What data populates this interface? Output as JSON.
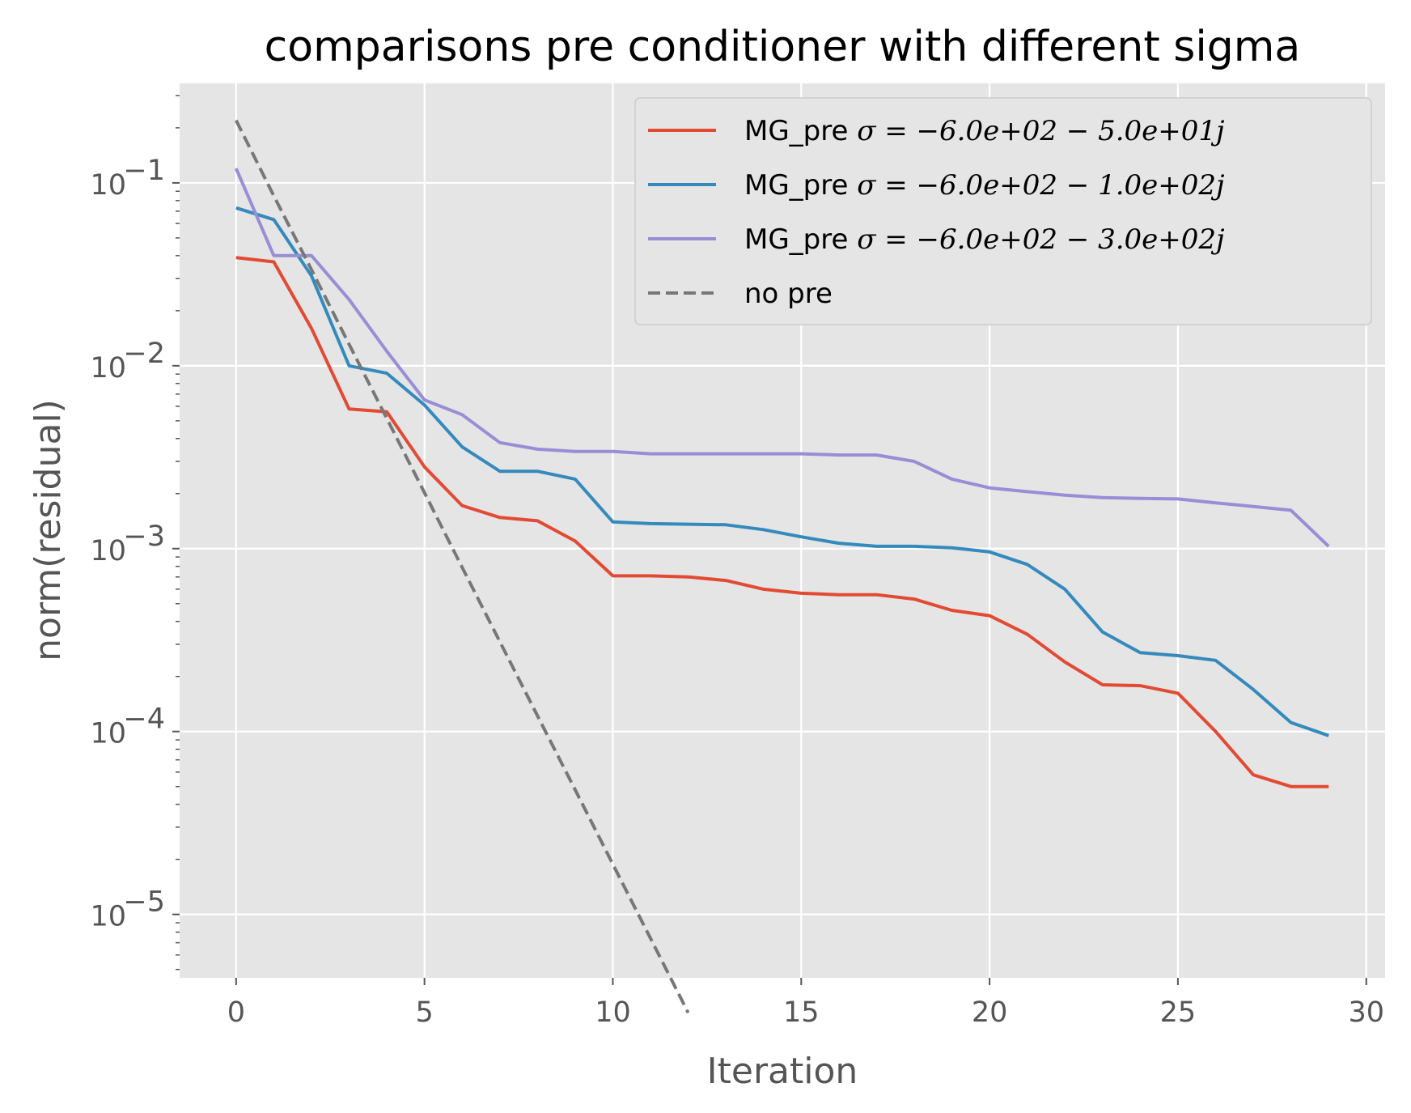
{
  "chart_data": {
    "type": "line",
    "title": "comparisons pre conditioner with different sigma",
    "xlabel": "Iteration",
    "ylabel": "norm(residual)",
    "yscale": "log",
    "xlim": [
      -1.5,
      30.5
    ],
    "ylim": [
      4.5e-06,
      0.35
    ],
    "xticks": [
      0,
      5,
      10,
      15,
      20,
      25,
      30
    ],
    "xtick_labels": [
      "0",
      "5",
      "10",
      "15",
      "20",
      "25",
      "30"
    ],
    "yticks": [
      1e-05,
      0.0001,
      0.001,
      0.01,
      0.1
    ],
    "ytick_labels": [
      "10−5",
      "10−4",
      "10−3",
      "10−2",
      "10−1"
    ],
    "grid": true,
    "legend_position": "top-right",
    "background": "#e5e5e5",
    "series": [
      {
        "name": "MG_pre σ = −6.0e+02 − 5.0e+01j",
        "color": "#e24a33",
        "style": "solid",
        "x": [
          0,
          1,
          2,
          3,
          4,
          5,
          6,
          7,
          8,
          9,
          10,
          11,
          12,
          13,
          14,
          15,
          16,
          17,
          18,
          19,
          20,
          21,
          22,
          23,
          24,
          25,
          26,
          27,
          28,
          29
        ],
        "values": [
          0.039,
          0.037,
          0.016,
          0.0058,
          0.0056,
          0.0028,
          0.00172,
          0.00148,
          0.00142,
          0.0011,
          0.00071,
          0.00071,
          0.0007,
          0.00067,
          0.0006,
          0.00057,
          0.00056,
          0.00056,
          0.00053,
          0.00046,
          0.00043,
          0.00034,
          0.00024,
          0.00018,
          0.000178,
          0.000162,
          0.0001,
          5.8e-05,
          5e-05,
          5e-05
        ]
      },
      {
        "name": "MG_pre σ = −6.0e+02 − 1.0e+02j",
        "color": "#348abd",
        "style": "solid",
        "x": [
          0,
          1,
          2,
          3,
          4,
          5,
          6,
          7,
          8,
          9,
          10,
          11,
          12,
          13,
          14,
          15,
          16,
          17,
          18,
          19,
          20,
          21,
          22,
          23,
          24,
          25,
          26,
          27,
          28,
          29
        ],
        "values": [
          0.073,
          0.063,
          0.031,
          0.01,
          0.0091,
          0.0061,
          0.0036,
          0.00265,
          0.00265,
          0.0024,
          0.0014,
          0.00137,
          0.00136,
          0.00135,
          0.00127,
          0.00116,
          0.00107,
          0.00103,
          0.00103,
          0.00101,
          0.00096,
          0.00082,
          0.0006,
          0.00035,
          0.00027,
          0.00026,
          0.000245,
          0.00017,
          0.000112,
          9.5e-05
        ]
      },
      {
        "name": "MG_pre σ = −6.0e+02 − 3.0e+02j",
        "color": "#988ed5",
        "style": "solid",
        "x": [
          0,
          1,
          2,
          3,
          4,
          5,
          6,
          7,
          8,
          9,
          10,
          11,
          12,
          13,
          14,
          15,
          16,
          17,
          18,
          19,
          20,
          21,
          22,
          23,
          24,
          25,
          26,
          27,
          28,
          29
        ],
        "values": [
          0.12,
          0.04,
          0.04,
          0.023,
          0.012,
          0.0065,
          0.0054,
          0.0038,
          0.0035,
          0.0034,
          0.0034,
          0.0033,
          0.0033,
          0.0033,
          0.0033,
          0.0033,
          0.00325,
          0.00325,
          0.003,
          0.0024,
          0.00215,
          0.00205,
          0.00196,
          0.0019,
          0.00188,
          0.00187,
          0.00178,
          0.0017,
          0.00162,
          0.00103
        ]
      },
      {
        "name": "no pre",
        "color": "#777777",
        "style": "dashed",
        "x": [
          0,
          1,
          2,
          3,
          4,
          5,
          6,
          7,
          8,
          9,
          10,
          11,
          12
        ],
        "values": [
          0.22,
          0.085,
          0.0335,
          0.0131,
          0.00515,
          0.00202,
          0.00079,
          0.00031,
          0.000122,
          4.8e-05,
          1.88e-05,
          7.4e-06,
          2.9e-06
        ]
      }
    ],
    "legend": [
      {
        "label_prefix": "MG_pre ",
        "label_math": "σ = −6.0e+02 − 5.0e+01j"
      },
      {
        "label_prefix": "MG_pre ",
        "label_math": "σ = −6.0e+02 − 1.0e+02j"
      },
      {
        "label_prefix": "MG_pre ",
        "label_math": "σ = −6.0e+02 − 3.0e+02j"
      },
      {
        "label_prefix": "no pre",
        "label_math": ""
      }
    ]
  }
}
